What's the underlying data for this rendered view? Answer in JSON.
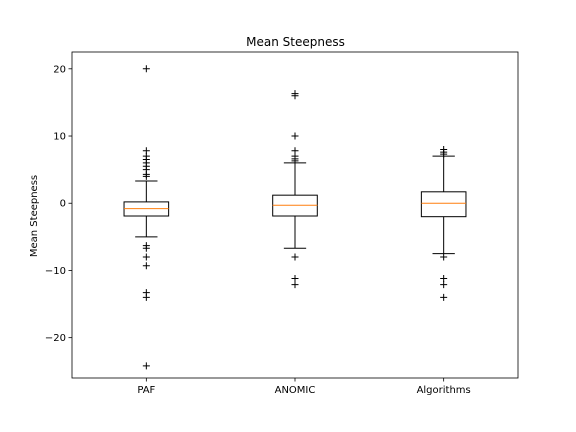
{
  "chart_data": {
    "type": "box",
    "title": "Mean Steepness",
    "ylabel": "Mean Steepness",
    "xlabel": "",
    "categories": [
      "PAF",
      "ANOMIC",
      "Algorithms"
    ],
    "ylim": [
      -26,
      22.5
    ],
    "yticks": [
      -20,
      -10,
      0,
      10,
      20
    ],
    "ytick_labels": [
      "−20",
      "−10",
      "0",
      "10",
      "20"
    ],
    "grid": false,
    "boxes": [
      {
        "category": "PAF",
        "whisker_low": -5.0,
        "q1": -1.9,
        "median": -0.8,
        "q3": 0.2,
        "whisker_high": 3.3,
        "fliers": [
          20.0,
          7.8,
          7.0,
          6.5,
          6.0,
          5.5,
          5.0,
          4.3,
          4.0,
          -6.3,
          -6.7,
          -8.0,
          -9.3,
          -13.3,
          -14.0,
          -24.2
        ]
      },
      {
        "category": "ANOMIC",
        "whisker_low": -6.7,
        "q1": -1.9,
        "median": -0.3,
        "q3": 1.2,
        "whisker_high": 6.0,
        "fliers": [
          16.3,
          16.0,
          10.0,
          7.8,
          7.0,
          6.6,
          6.3,
          -8.0,
          -11.2,
          -12.1
        ]
      },
      {
        "category": "Algorithms",
        "whisker_low": -7.5,
        "q1": -2.0,
        "median": 0.0,
        "q3": 1.7,
        "whisker_high": 7.0,
        "fliers": [
          8.0,
          7.6,
          7.3,
          -8.0,
          -11.2,
          -12.1,
          -14.0
        ]
      }
    ],
    "colors": {
      "box": "#000000",
      "median": "#ff7f0e",
      "flier": "#000000"
    }
  }
}
